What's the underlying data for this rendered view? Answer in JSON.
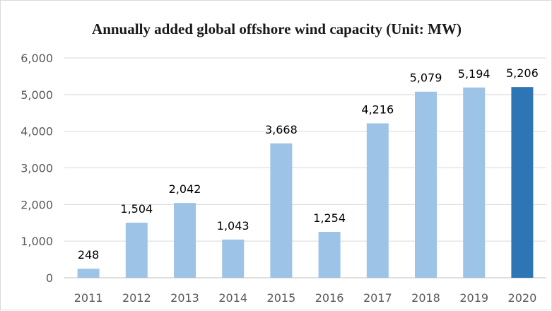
{
  "chart_data": {
    "type": "bar",
    "title": "Annually added global offshore wind capacity (Unit: MW)",
    "categories": [
      "2011",
      "2012",
      "2013",
      "2014",
      "2015",
      "2016",
      "2017",
      "2018",
      "2019",
      "2020"
    ],
    "values": [
      248,
      1504,
      2042,
      1043,
      3668,
      1254,
      4216,
      5079,
      5194,
      5206
    ],
    "data_labels": [
      "248",
      "1,504",
      "2,042",
      "1,043",
      "3,668",
      "1,254",
      "4,216",
      "5,079",
      "5,194",
      "5,206"
    ],
    "yticks": [
      "0",
      "1,000",
      "2,000",
      "3,000",
      "4,000",
      "5,000",
      "6,000"
    ],
    "ylim": [
      0,
      6000
    ],
    "grid": true,
    "legend": "none",
    "colors": {
      "bar": "#9dc3e6",
      "highlight_bar": "#2e75b6",
      "grid": "#d9d9d9",
      "axis": "#bfbfbf"
    },
    "highlight_category": "2020"
  }
}
